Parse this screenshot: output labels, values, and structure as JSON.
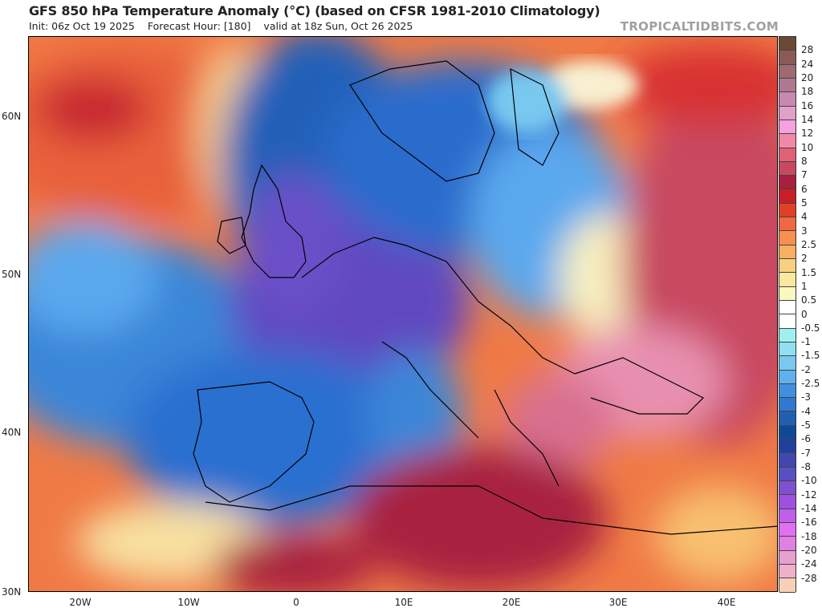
{
  "header": {
    "title": "GFS 850 hPa Temperature Anomaly (°C) (based on CFSR 1981-2010 Climatology)",
    "init": "Init: 06z Oct 19 2025",
    "forecast_hour": "Forecast Hour: [180]",
    "valid": "valid at 18z Sun, Oct 26 2025",
    "brand": "TROPICALTIDBITS.COM"
  },
  "axes": {
    "lat_labels": [
      "60N",
      "50N",
      "40N",
      "30N"
    ],
    "lon_labels": [
      "20W",
      "10W",
      "0",
      "10E",
      "20E",
      "30E",
      "40E"
    ]
  },
  "colorbar": {
    "labels": [
      "28",
      "24",
      "20",
      "18",
      "16",
      "14",
      "12",
      "10",
      "8",
      "7",
      "6",
      "5",
      "4",
      "3",
      "2.5",
      "2",
      "1.5",
      "1",
      "0.5",
      "0",
      "-0.5",
      "-1",
      "-1.5",
      "-2",
      "-2.5",
      "-3",
      "-4",
      "-5",
      "-6",
      "-7",
      "-8",
      "-10",
      "-12",
      "-14",
      "-16",
      "-18",
      "-20",
      "-24",
      "-28"
    ],
    "colors": [
      "#6b4a35",
      "#8a5a55",
      "#a06a70",
      "#b07890",
      "#c888b0",
      "#e0a0c8",
      "#f8a0e0",
      "#f088a8",
      "#e06078",
      "#c84860",
      "#a82040",
      "#c81e28",
      "#e04028",
      "#f06840",
      "#f89050",
      "#f8b060",
      "#f8d080",
      "#f8e8a0",
      "#f8f8c0",
      "#ffffff",
      "#ffffff",
      "#a0f0f0",
      "#90e0f0",
      "#78c8f0",
      "#60b0f0",
      "#4090e0",
      "#3078d0",
      "#2060b0",
      "#104898",
      "#2040a0",
      "#4048b0",
      "#5850c0",
      "#8050d0",
      "#a050e0",
      "#c060e8",
      "#e070f0",
      "#e080e0",
      "#e8a0d0",
      "#f0b0c8",
      "#f8d0b8"
    ]
  }
}
